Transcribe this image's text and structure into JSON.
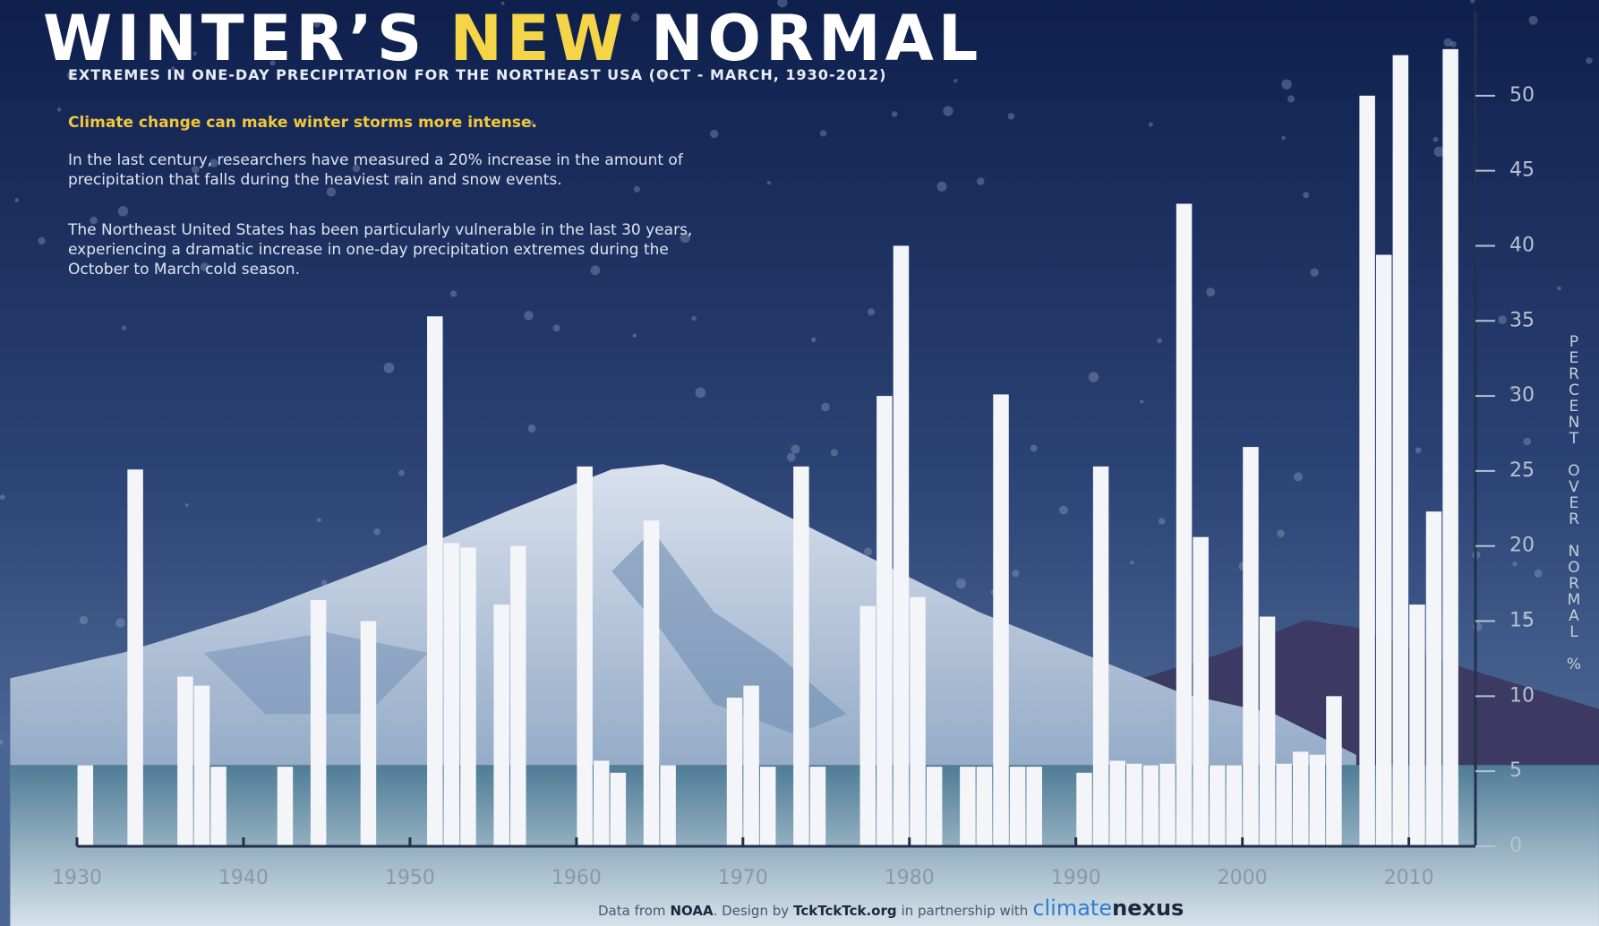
{
  "chart_data": {
    "type": "bar",
    "title_parts": [
      "WINTER’S",
      "NEW",
      "NORMAL"
    ],
    "subtitle": "EXTREMES IN ONE-DAY PRECIPITATION FOR THE NORTHEAST USA (OCT - MARCH, 1930-2012)",
    "lead": "Climate change can make winter storms more intense.",
    "paragraphs": [
      "In the last century, researchers have measured a 20% increase in the amount of precipitation that falls during the heaviest rain and snow events.",
      "The Northeast United States has been particularly vulnerable in the last 30 years, experiencing a dramatic increase in one-day precipitation extremes during the October to March cold season."
    ],
    "y_label": "PERCENT OVER NORMAL %",
    "footer": [
      "Data from",
      "NOAA",
      ". Design by",
      "TckTckTck.org",
      "in partnership with",
      "climate",
      "nexus"
    ],
    "x": [
      1930,
      1931,
      1932,
      1933,
      1934,
      1935,
      1936,
      1937,
      1938,
      1939,
      1940,
      1941,
      1942,
      1943,
      1944,
      1945,
      1946,
      1947,
      1948,
      1949,
      1950,
      1951,
      1952,
      1953,
      1954,
      1955,
      1956,
      1957,
      1958,
      1959,
      1960,
      1961,
      1962,
      1963,
      1964,
      1965,
      1966,
      1967,
      1968,
      1969,
      1970,
      1971,
      1972,
      1973,
      1974,
      1975,
      1976,
      1977,
      1978,
      1979,
      1980,
      1981,
      1982,
      1983,
      1984,
      1985,
      1986,
      1987,
      1988,
      1989,
      1990,
      1991,
      1992,
      1993,
      1994,
      1995,
      1996,
      1997,
      1998,
      1999,
      2000,
      2001,
      2002,
      2003,
      2004,
      2005,
      2006,
      2007,
      2008,
      2009,
      2010,
      2011,
      2012
    ],
    "values": [
      5.4,
      0,
      0,
      25.1,
      0,
      0,
      11.3,
      10.7,
      5.3,
      0,
      0,
      0,
      5.3,
      0,
      16.4,
      0,
      0,
      15.0,
      0,
      0,
      0,
      35.3,
      20.2,
      19.9,
      0,
      16.1,
      20.0,
      0,
      0,
      0,
      25.3,
      5.7,
      4.9,
      0,
      21.7,
      5.4,
      0,
      0,
      0,
      9.9,
      10.7,
      5.3,
      0,
      25.3,
      5.3,
      0,
      0,
      16.0,
      30.0,
      40.0,
      16.6,
      5.3,
      0,
      5.3,
      5.3,
      30.1,
      5.3,
      5.3,
      0,
      0,
      4.9,
      25.3,
      5.7,
      5.5,
      5.4,
      5.5,
      42.8,
      20.6,
      5.4,
      5.4,
      26.6,
      15.3,
      5.5,
      6.3,
      6.1,
      10.0,
      0,
      50.0,
      39.4,
      52.7,
      16.1,
      22.3,
      53.1
    ],
    "color": "#f4f5f8",
    "xlim": [
      1929.5,
      2013.5
    ],
    "xticks": [
      1930,
      1940,
      1950,
      1960,
      1970,
      1980,
      1990,
      2000,
      2010
    ],
    "ylim": [
      0,
      55
    ],
    "yticks": [
      0,
      5,
      10,
      15,
      20,
      25,
      30,
      35,
      40,
      45,
      50
    ],
    "y_axis_side": "right"
  }
}
